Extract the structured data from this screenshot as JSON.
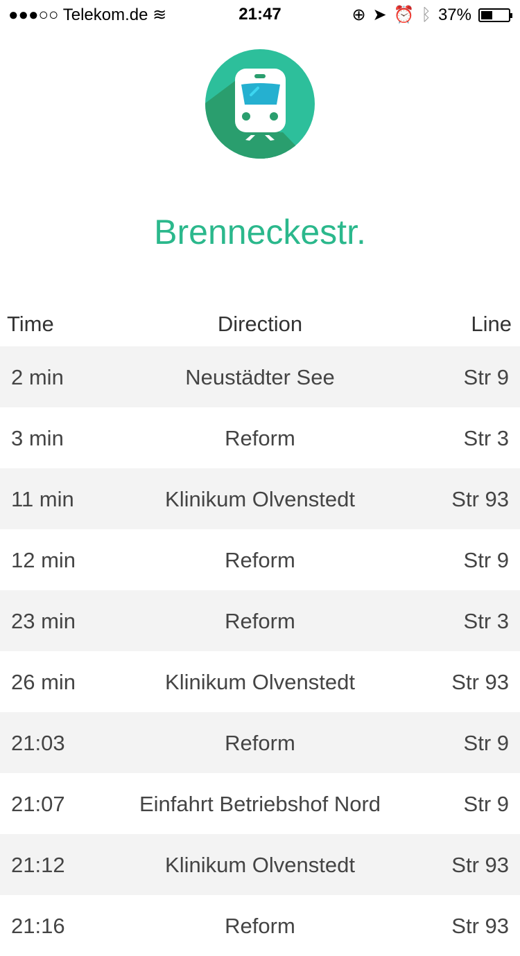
{
  "status_bar": {
    "carrier": "●●●○○ Telekom.de",
    "time": "21:47",
    "battery": "37%",
    "battery_level": 0.37,
    "icons": [
      "wifi-icon",
      "rotation-lock-icon",
      "location-icon",
      "alarm-icon",
      "bluetooth-icon",
      "battery-icon"
    ]
  },
  "station": {
    "name": "Brenneckestr."
  },
  "colors": {
    "accent": "#2bb88c",
    "row_alt": "#f3f3f3"
  },
  "table": {
    "headers": {
      "time": "Time",
      "direction": "Direction",
      "line": "Line"
    },
    "rows": [
      {
        "time": "2 min",
        "direction": "Neustädter See",
        "line": "Str 9"
      },
      {
        "time": "3 min",
        "direction": "Reform",
        "line": "Str 3"
      },
      {
        "time": "11 min",
        "direction": "Klinikum Olvenstedt",
        "line": "Str 93"
      },
      {
        "time": "12 min",
        "direction": "Reform",
        "line": "Str 9"
      },
      {
        "time": "23 min",
        "direction": "Reform",
        "line": "Str 3"
      },
      {
        "time": "26 min",
        "direction": "Klinikum Olvenstedt",
        "line": "Str 93"
      },
      {
        "time": "21:03",
        "direction": "Reform",
        "line": "Str 9"
      },
      {
        "time": "21:07",
        "direction": "Einfahrt Betriebshof Nord",
        "line": "Str 9"
      },
      {
        "time": "21:12",
        "direction": "Klinikum Olvenstedt",
        "line": "Str 93"
      },
      {
        "time": "21:16",
        "direction": "Reform",
        "line": "Str 93"
      }
    ]
  }
}
